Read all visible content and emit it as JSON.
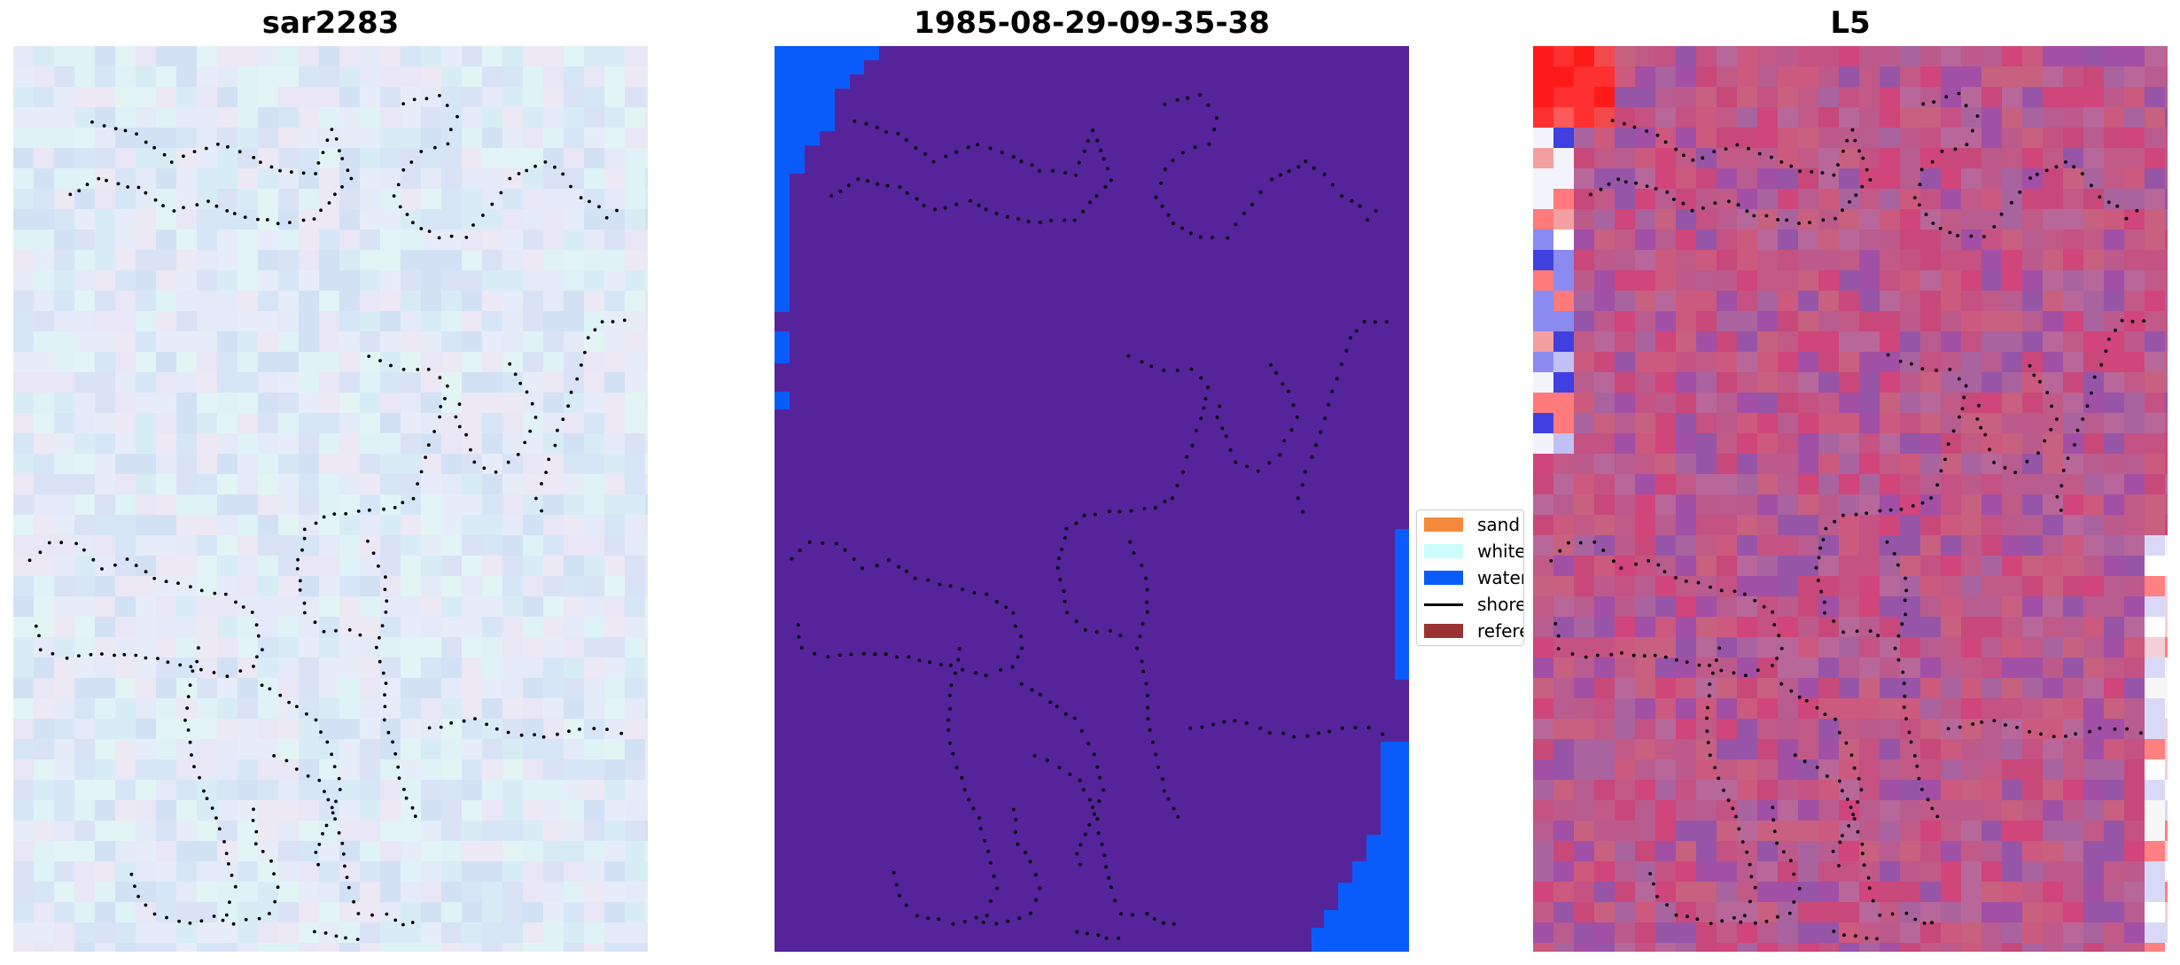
{
  "panels": [
    {
      "title": "sar2283"
    },
    {
      "title": "1985-08-29-09-35-38"
    },
    {
      "title": "L5"
    }
  ],
  "legend": {
    "items": [
      {
        "label": "sand",
        "color": "#f58a3c",
        "kind": "patch"
      },
      {
        "label": "whitewater",
        "color": "#ccfdfd",
        "kind": "patch"
      },
      {
        "label": "water",
        "color": "#0a5cfa",
        "kind": "patch"
      },
      {
        "label": "shoreline",
        "color": "#000000",
        "kind": "line"
      },
      {
        "label": "reference",
        "color": "#9a3232",
        "kind": "patch"
      }
    ]
  },
  "colors": {
    "classified_background": "#55249a",
    "water": "#0a5cfa",
    "l5_base": "#c15a87",
    "sar_base": "#dce6f6",
    "shoreline_points": "#000000"
  }
}
